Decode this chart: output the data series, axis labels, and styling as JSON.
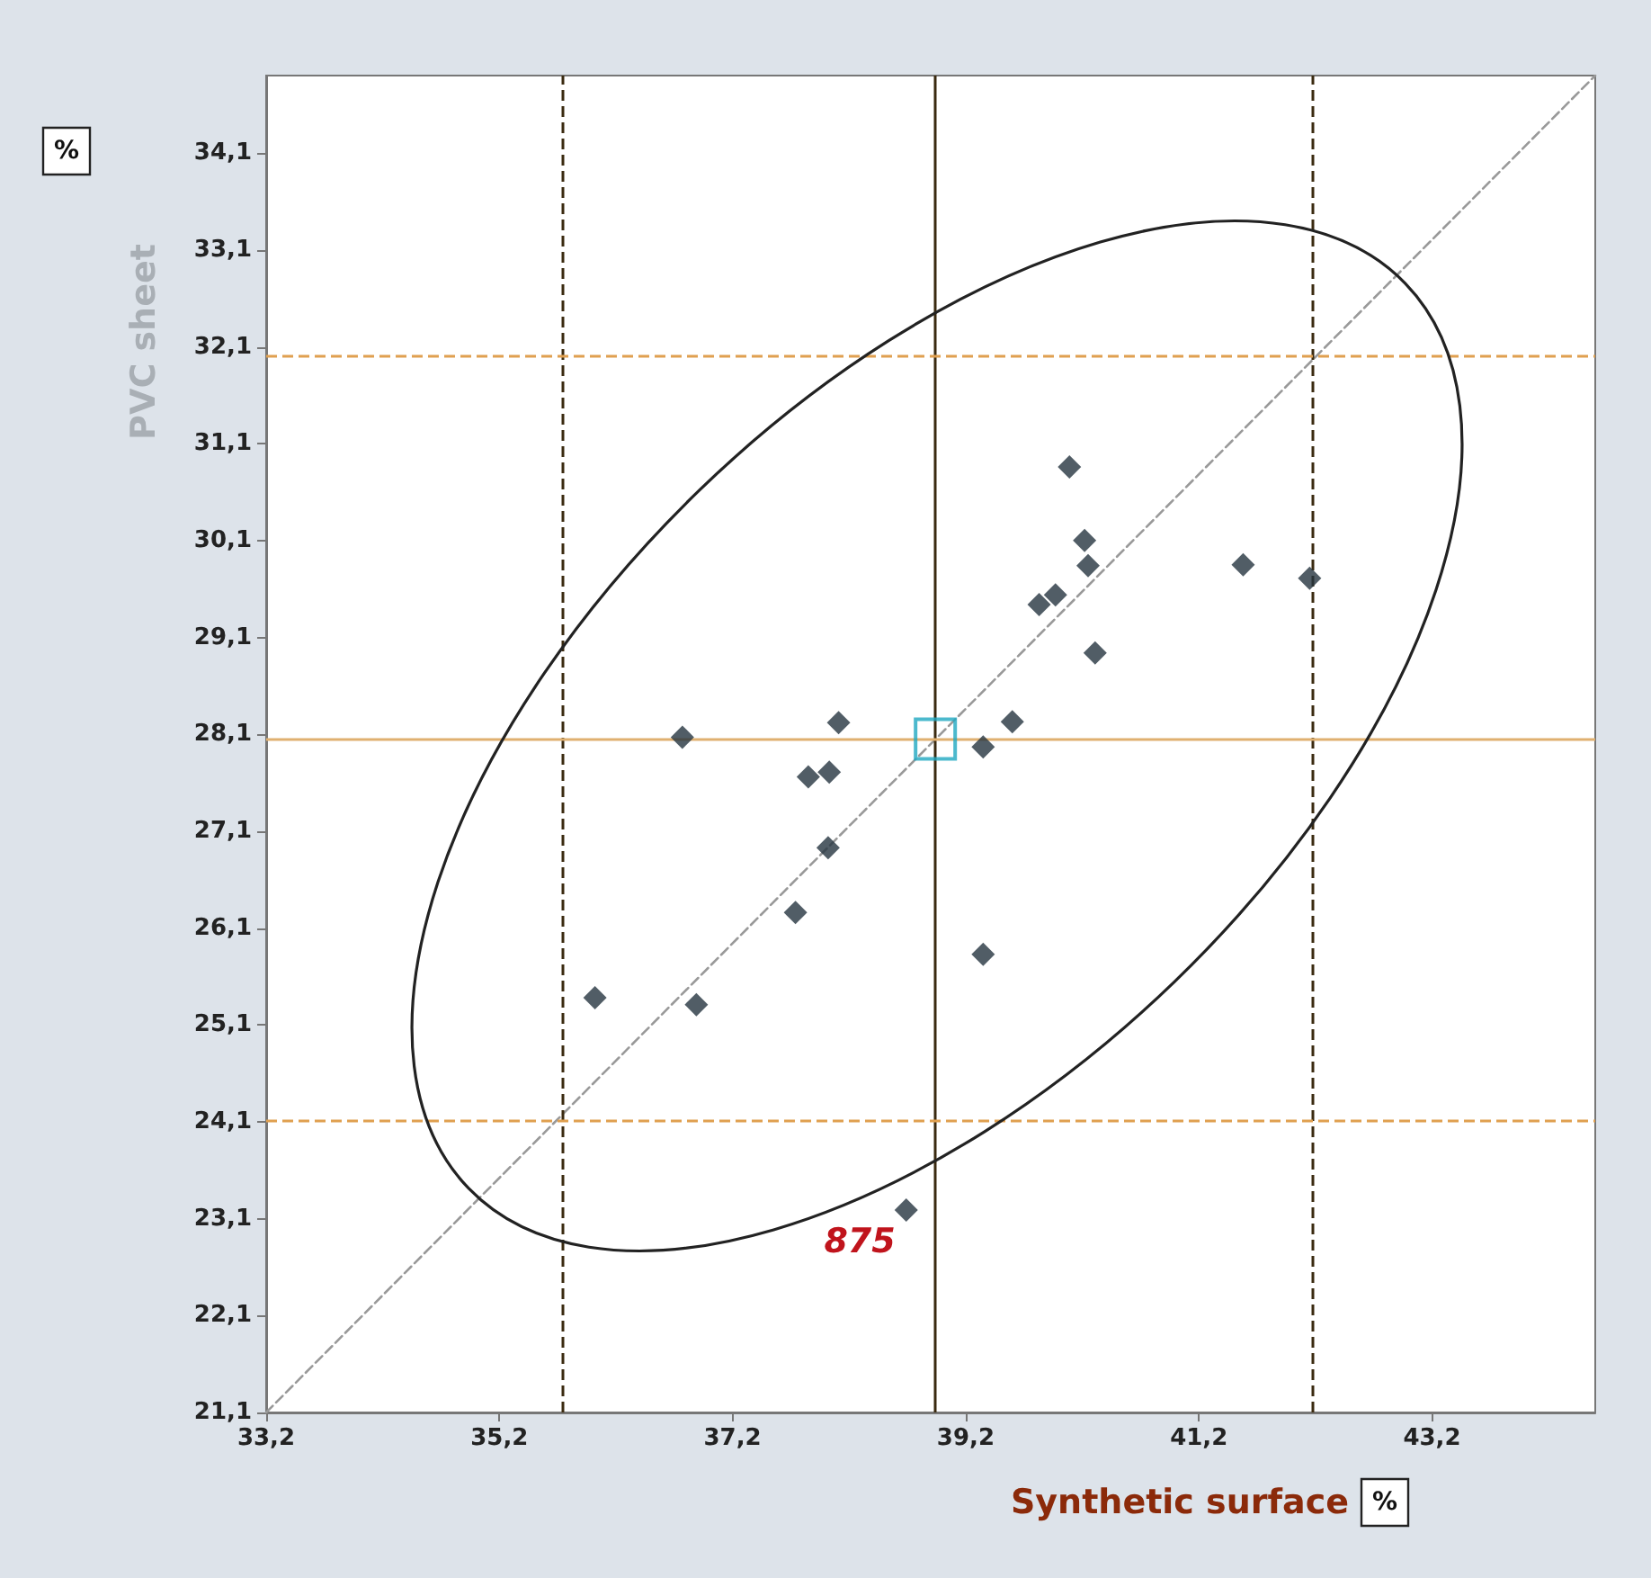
{
  "chart_data": {
    "type": "scatter",
    "xlabel": "Synthetic surface",
    "ylabel": "PVC sheet",
    "annotations": [
      {
        "text": "875",
        "x": 38.69,
        "y": 23.19
      },
      "%",
      "%"
    ],
    "xlim": [
      33.2,
      44.6
    ],
    "ylim": [
      21.1,
      34.9
    ],
    "xticks": [
      {
        "value": 33.2,
        "label": "33,2"
      },
      {
        "value": 35.2,
        "label": "35,2"
      },
      {
        "value": 37.2,
        "label": "37,2"
      },
      {
        "value": 39.2,
        "label": "39,2"
      },
      {
        "value": 41.2,
        "label": "41,2"
      },
      {
        "value": 43.2,
        "label": "43,2"
      }
    ],
    "yticks": [
      {
        "value": 21.1,
        "label": "21,1"
      },
      {
        "value": 22.1,
        "label": "22,1"
      },
      {
        "value": 23.1,
        "label": "23,1"
      },
      {
        "value": 24.1,
        "label": "24,1"
      },
      {
        "value": 25.1,
        "label": "25,1"
      },
      {
        "value": 26.1,
        "label": "26,1"
      },
      {
        "value": 27.1,
        "label": "27,1"
      },
      {
        "value": 28.1,
        "label": "28,1"
      },
      {
        "value": 29.1,
        "label": "29,1"
      },
      {
        "value": 30.1,
        "label": "30,1"
      },
      {
        "value": 31.1,
        "label": "31,1"
      },
      {
        "value": 32.1,
        "label": "32,1"
      },
      {
        "value": 33.1,
        "label": "33,1"
      },
      {
        "value": 34.1,
        "label": "34,1"
      }
    ],
    "grid": false,
    "ref_lines": [
      {
        "axis": "x",
        "value": 38.94,
        "color": "#3a2a10",
        "line_style": "solid"
      },
      {
        "axis": "x",
        "value": 35.74,
        "color": "#3a2a10",
        "line_style": "dashed"
      },
      {
        "axis": "x",
        "value": 42.17,
        "color": "#3a2a10",
        "line_style": "dashed"
      },
      {
        "axis": "y",
        "value": 28.05,
        "color": "#e0b070",
        "line_style": "solid"
      },
      {
        "axis": "y",
        "value": 32.0,
        "color": "#e0a050",
        "line_style": "dashed"
      },
      {
        "axis": "y",
        "value": 24.12,
        "color": "#e0a050",
        "line_style": "dashed"
      }
    ],
    "series": [
      {
        "type": "line",
        "color": "#999999",
        "line_style": "dashed",
        "marker": "none",
        "x": [
          33.2,
          44.6
        ],
        "values": [
          21.1,
          34.9
        ]
      },
      {
        "color": "#253540",
        "marker": "diamond",
        "x": [
          36.02,
          36.77,
          36.89,
          37.74,
          37.85,
          38.03,
          38.02,
          38.11,
          38.69,
          39.35,
          39.35,
          39.6,
          39.83,
          39.97,
          40.09,
          40.22,
          40.25,
          40.31,
          41.58,
          42.15
        ],
        "values": [
          25.38,
          28.07,
          25.31,
          26.26,
          27.66,
          27.71,
          26.93,
          28.22,
          23.19,
          27.97,
          25.83,
          28.23,
          29.44,
          29.54,
          30.86,
          30.1,
          29.84,
          28.94,
          29.85,
          29.71
        ]
      },
      {
        "type": "scatter",
        "color": "#1fa8c0",
        "marker": "square",
        "x": [
          38.94
        ],
        "values": [
          28.05
        ]
      }
    ]
  }
}
